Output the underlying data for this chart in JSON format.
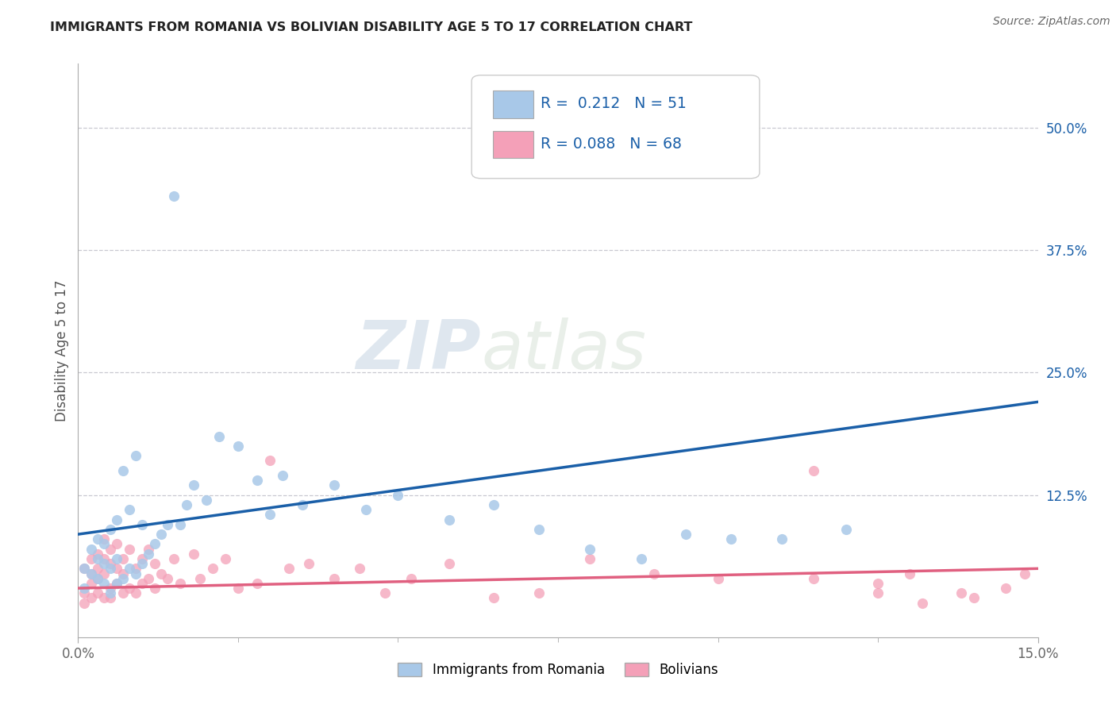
{
  "title": "IMMIGRANTS FROM ROMANIA VS BOLIVIAN DISABILITY AGE 5 TO 17 CORRELATION CHART",
  "source": "Source: ZipAtlas.com",
  "ylabel": "Disability Age 5 to 17",
  "xlim": [
    0.0,
    0.15
  ],
  "ylim": [
    -0.02,
    0.565
  ],
  "x_ticks": [
    0.0,
    0.15
  ],
  "x_tick_labels": [
    "0.0%",
    "15.0%"
  ],
  "y_tick_labels_right": [
    "50.0%",
    "37.5%",
    "25.0%",
    "12.5%"
  ],
  "y_tick_positions_right": [
    0.5,
    0.375,
    0.25,
    0.125
  ],
  "background_color": "#ffffff",
  "grid_color": "#c8c8d0",
  "romania_color": "#a8c8e8",
  "bolivia_color": "#f4a0b8",
  "romania_line_color": "#1a5fa8",
  "bolivia_line_color": "#e06080",
  "legend_text_color": "#1a5fa8",
  "legend_R1": "0.212",
  "legend_N1": "51",
  "legend_R2": "0.088",
  "legend_N2": "68",
  "watermark_zip": "ZIP",
  "watermark_atlas": "atlas",
  "romania_scatter_x": [
    0.001,
    0.001,
    0.002,
    0.002,
    0.003,
    0.003,
    0.003,
    0.004,
    0.004,
    0.004,
    0.005,
    0.005,
    0.005,
    0.006,
    0.006,
    0.006,
    0.007,
    0.007,
    0.008,
    0.008,
    0.009,
    0.009,
    0.01,
    0.01,
    0.011,
    0.012,
    0.013,
    0.014,
    0.015,
    0.016,
    0.017,
    0.018,
    0.02,
    0.022,
    0.025,
    0.028,
    0.03,
    0.032,
    0.035,
    0.04,
    0.045,
    0.05,
    0.058,
    0.065,
    0.072,
    0.08,
    0.088,
    0.095,
    0.102,
    0.11,
    0.12
  ],
  "romania_scatter_y": [
    0.05,
    0.03,
    0.045,
    0.07,
    0.04,
    0.06,
    0.08,
    0.035,
    0.055,
    0.075,
    0.025,
    0.05,
    0.09,
    0.035,
    0.06,
    0.1,
    0.04,
    0.15,
    0.05,
    0.11,
    0.045,
    0.165,
    0.055,
    0.095,
    0.065,
    0.075,
    0.085,
    0.095,
    0.43,
    0.095,
    0.115,
    0.135,
    0.12,
    0.185,
    0.175,
    0.14,
    0.105,
    0.145,
    0.115,
    0.135,
    0.11,
    0.125,
    0.1,
    0.115,
    0.09,
    0.07,
    0.06,
    0.085,
    0.08,
    0.08,
    0.09
  ],
  "bolivia_scatter_x": [
    0.001,
    0.001,
    0.001,
    0.002,
    0.002,
    0.002,
    0.002,
    0.003,
    0.003,
    0.003,
    0.003,
    0.004,
    0.004,
    0.004,
    0.004,
    0.005,
    0.005,
    0.005,
    0.005,
    0.006,
    0.006,
    0.006,
    0.007,
    0.007,
    0.007,
    0.008,
    0.008,
    0.009,
    0.009,
    0.01,
    0.01,
    0.011,
    0.011,
    0.012,
    0.012,
    0.013,
    0.014,
    0.015,
    0.016,
    0.018,
    0.019,
    0.021,
    0.023,
    0.025,
    0.028,
    0.03,
    0.033,
    0.036,
    0.04,
    0.044,
    0.048,
    0.052,
    0.058,
    0.065,
    0.072,
    0.08,
    0.09,
    0.1,
    0.115,
    0.125,
    0.13,
    0.138,
    0.145,
    0.148,
    0.115,
    0.125,
    0.132,
    0.14
  ],
  "bolivia_scatter_y": [
    0.025,
    0.05,
    0.015,
    0.035,
    0.06,
    0.02,
    0.045,
    0.04,
    0.065,
    0.025,
    0.05,
    0.02,
    0.045,
    0.06,
    0.08,
    0.03,
    0.055,
    0.07,
    0.02,
    0.035,
    0.05,
    0.075,
    0.025,
    0.045,
    0.06,
    0.03,
    0.07,
    0.025,
    0.05,
    0.035,
    0.06,
    0.04,
    0.07,
    0.03,
    0.055,
    0.045,
    0.04,
    0.06,
    0.035,
    0.065,
    0.04,
    0.05,
    0.06,
    0.03,
    0.035,
    0.16,
    0.05,
    0.055,
    0.04,
    0.05,
    0.025,
    0.04,
    0.055,
    0.02,
    0.025,
    0.06,
    0.045,
    0.04,
    0.15,
    0.035,
    0.045,
    0.025,
    0.03,
    0.045,
    0.04,
    0.025,
    0.015,
    0.02
  ]
}
